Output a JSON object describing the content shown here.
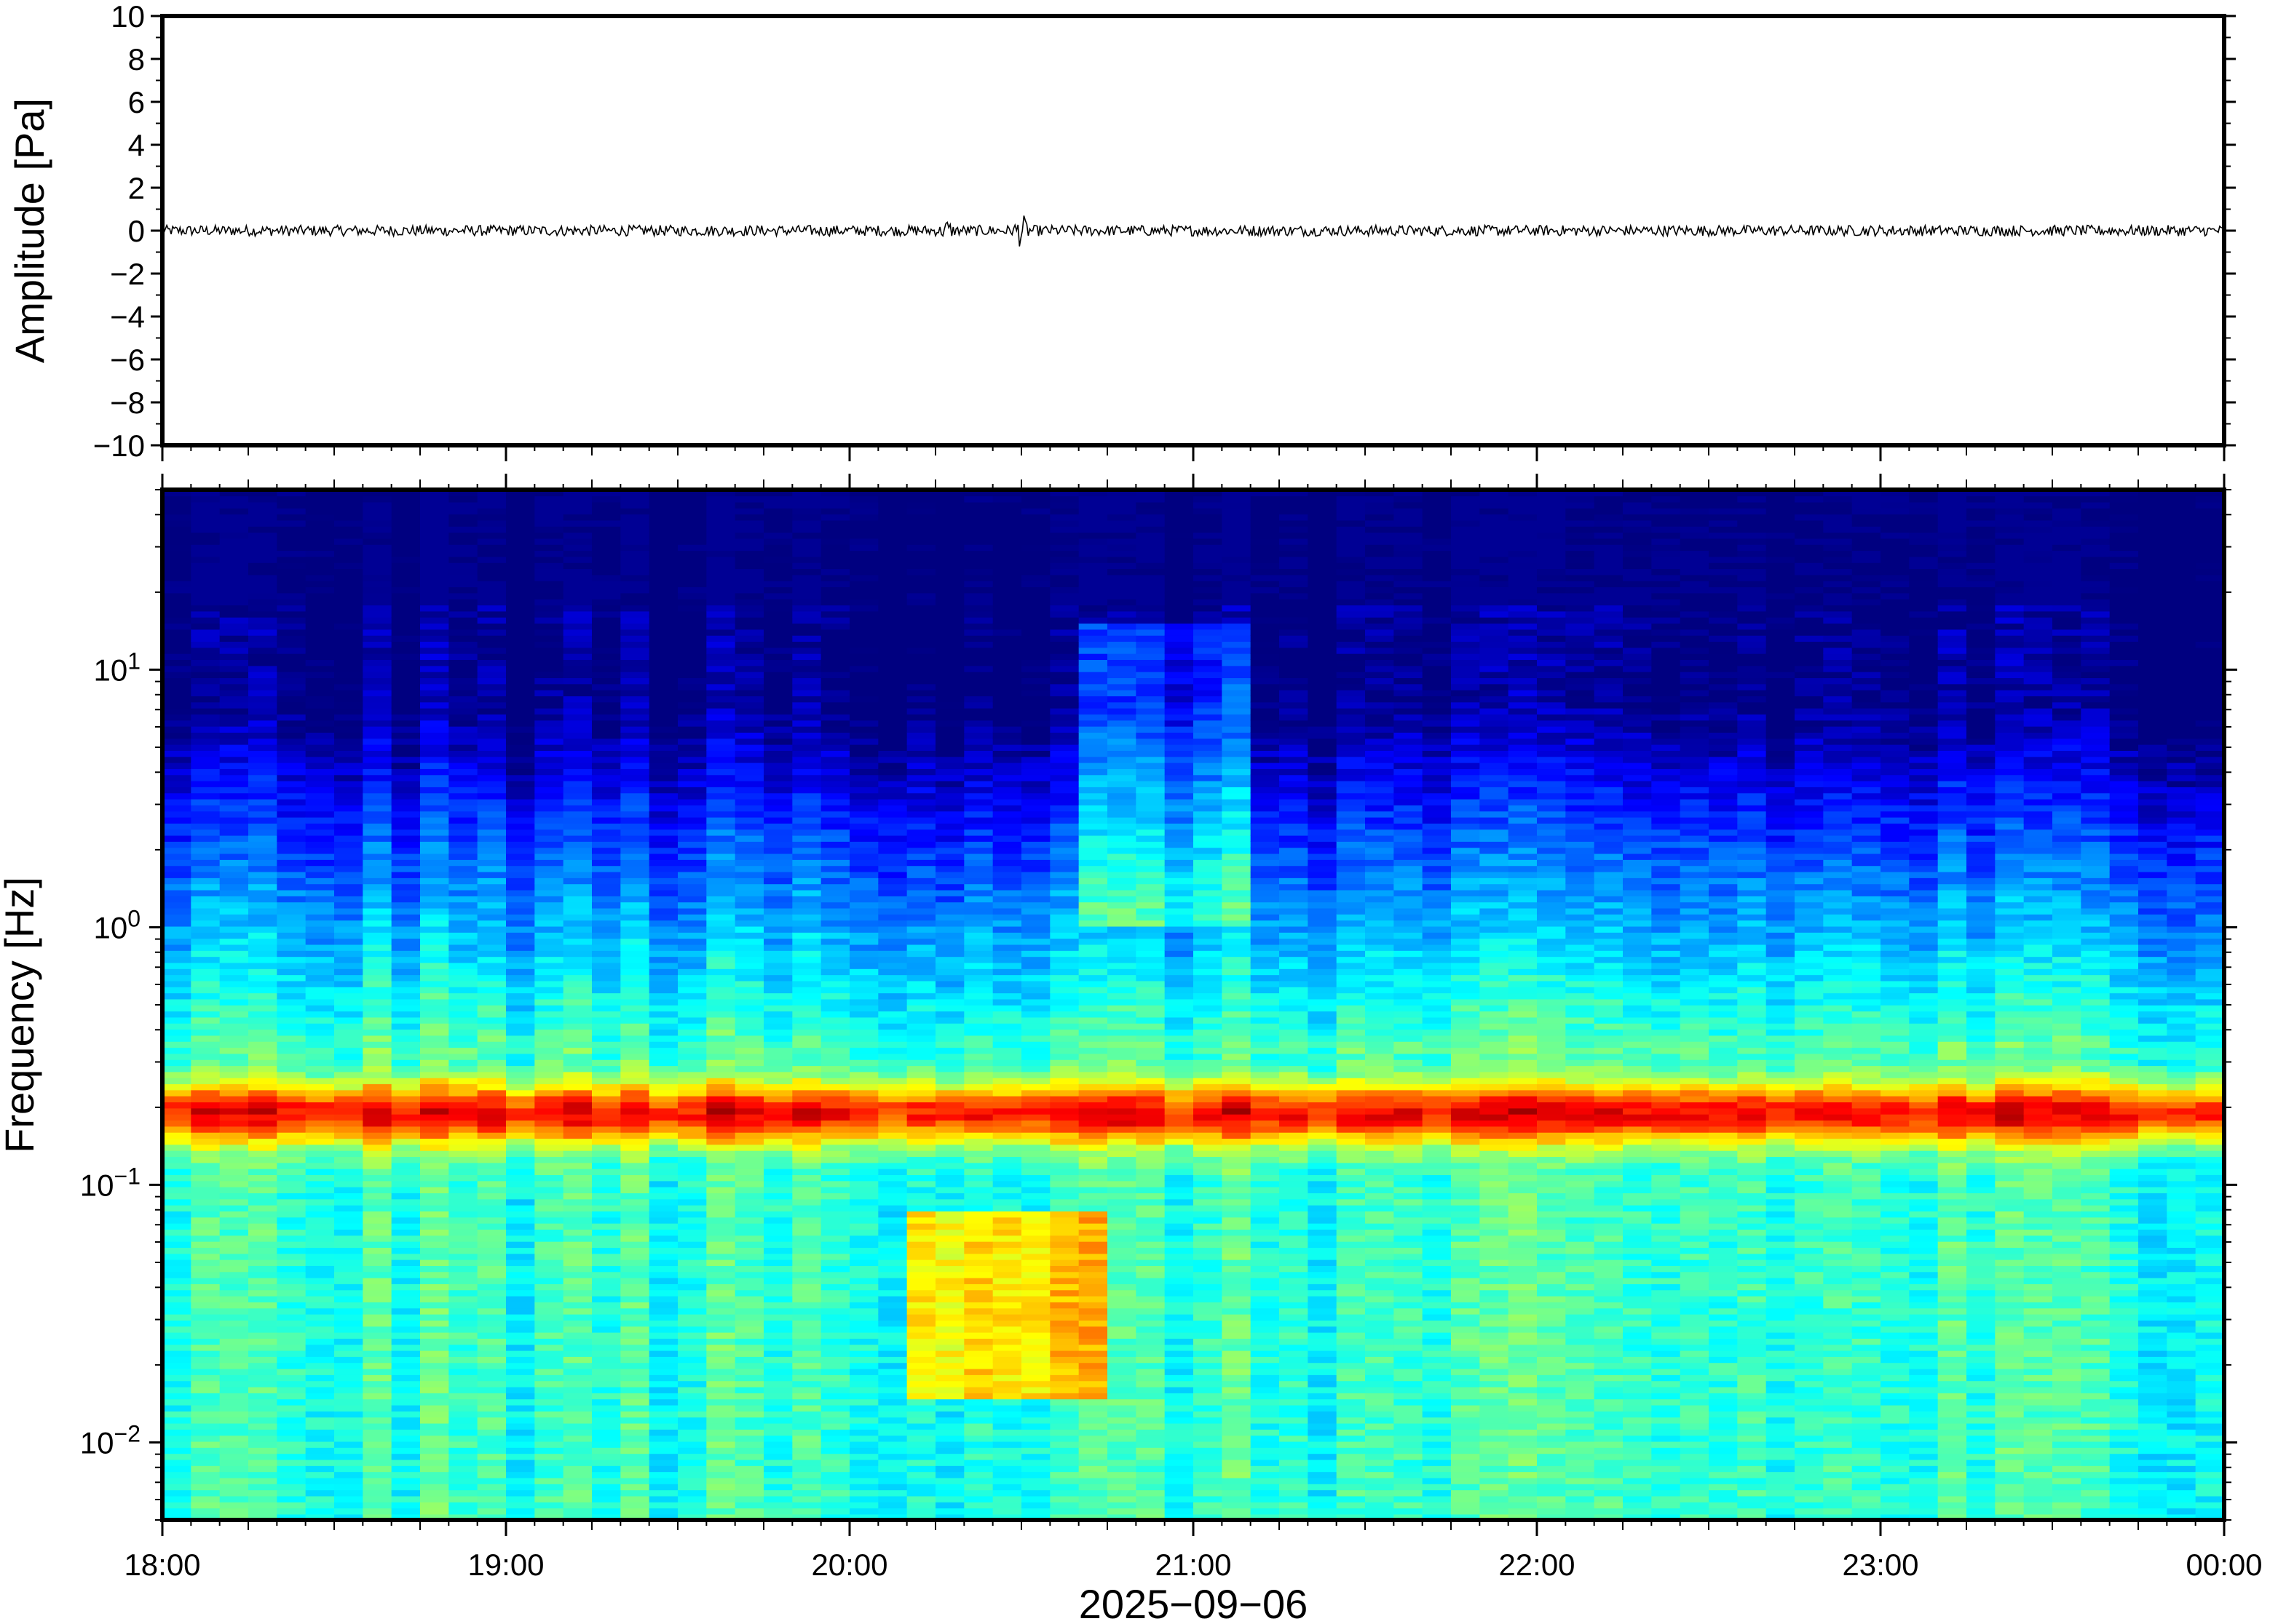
{
  "chart_data": [
    {
      "type": "line",
      "title": "",
      "xlabel": "",
      "ylabel": "Amplitude [Pa]",
      "ylim": [
        -10,
        10
      ],
      "yticks": [
        10,
        8,
        6,
        4,
        2,
        0,
        -2,
        -4,
        -6,
        -8,
        -10
      ],
      "ytick_labels": [
        "10",
        "8",
        "6",
        "4",
        "2",
        "0",
        "−2",
        "−4",
        "−6",
        "−8",
        "−10"
      ],
      "x_range": [
        "18:00",
        "00:00"
      ],
      "series": [
        {
          "color": "#000000",
          "trace_center": 0,
          "noise_amplitude_approx": 0.25,
          "peak_events": [
            {
              "time": "20:17",
              "peak_amplitude": 0.6
            },
            {
              "time": "20:30",
              "peak_amplitude": 0.9
            }
          ]
        }
      ],
      "grid": false
    },
    {
      "type": "heatmap",
      "xlabel": "2025−09−06",
      "ylabel": "Frequency [Hz]",
      "y_scale": "log",
      "ylim": [
        0.005,
        50
      ],
      "yticks": [
        10,
        1,
        0.1,
        0.01
      ],
      "ytick_labels": [
        {
          "base": "10",
          "exp": "1"
        },
        {
          "base": "10",
          "exp": "0"
        },
        {
          "base": "10",
          "exp": "−1"
        },
        {
          "base": "10",
          "exp": "−2"
        }
      ],
      "xticks": [
        "18:00",
        "19:00",
        "20:00",
        "21:00",
        "22:00",
        "23:00",
        "00:00"
      ],
      "colormap": "jet",
      "features": [
        {
          "label": "microseism band",
          "frequency_hz": 0.19,
          "level": "high"
        },
        {
          "label": "elevated low-frequency energy",
          "time_range": [
            "20:10",
            "20:45"
          ],
          "frequency_range_hz": [
            0.015,
            0.08
          ],
          "level": "high"
        },
        {
          "label": "broadband high-frequency energy",
          "time_range": [
            "20:40",
            "21:10"
          ],
          "frequency_range_hz": [
            1,
            15
          ],
          "level": "moderate"
        }
      ],
      "grid": false
    }
  ],
  "colors": {
    "frame": "#000000",
    "jet_dark": "#00007f",
    "jet_mid": "#5ae6ff",
    "jet_peak": "#ff7f2a"
  }
}
